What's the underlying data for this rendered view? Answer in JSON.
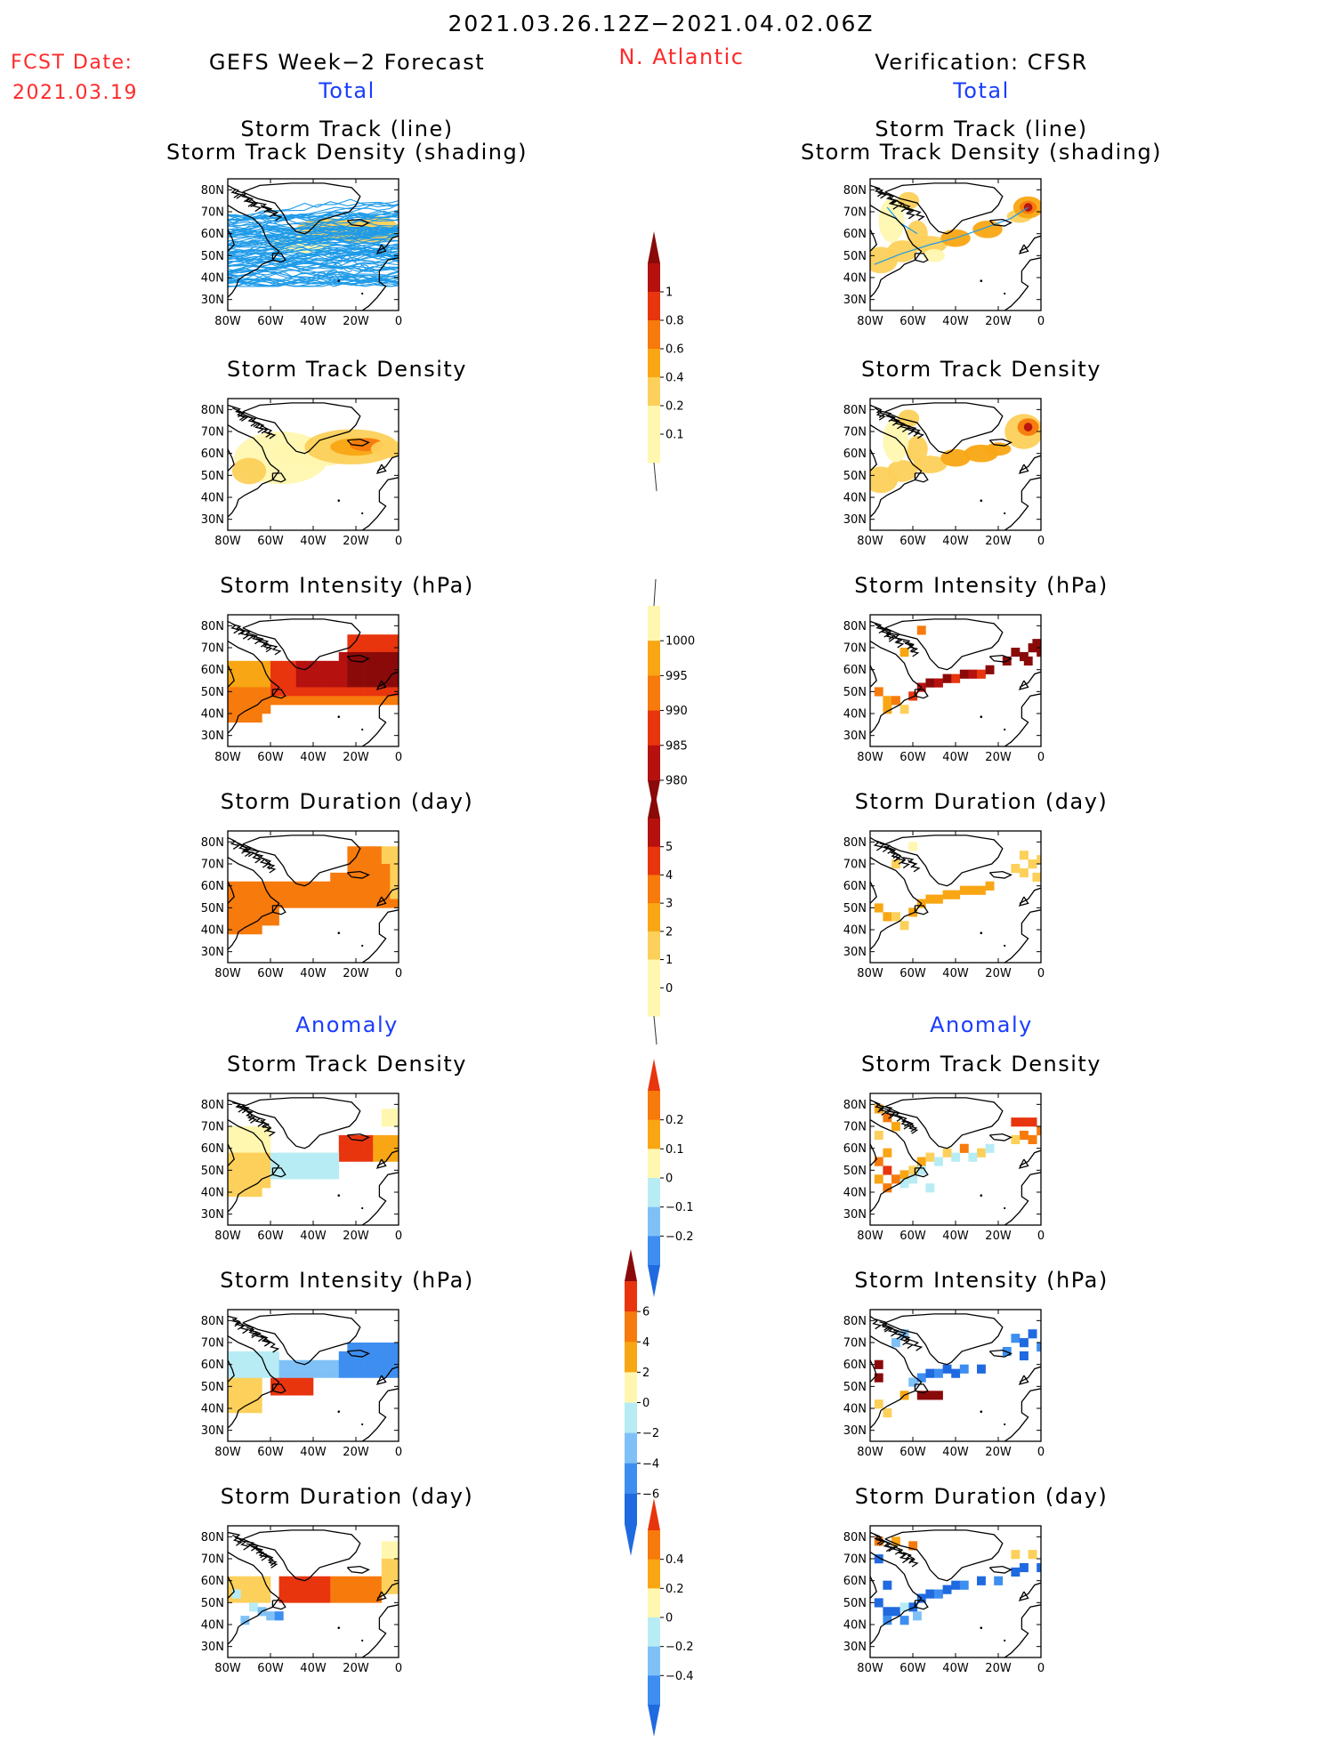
{
  "header": {
    "date_range": "2021.03.26.12Z−2021.04.02.06Z",
    "fcst_label": "FCST Date:",
    "fcst_date": "2021.03.19",
    "left_title": "GEFS Week−2 Forecast",
    "region": "N. Atlantic",
    "right_title": "Verification: CFSR",
    "total": "Total",
    "anomaly": "Anomaly"
  },
  "panels": {
    "track_line": "Storm Track (line)",
    "track_shading": "Storm Track Density (shading)",
    "density": "Storm Track Density",
    "intensity": "Storm Intensity (hPa)",
    "duration": "Storm Duration (day)"
  },
  "axes": {
    "lat": [
      "80N",
      "70N",
      "60N",
      "50N",
      "40N",
      "30N"
    ],
    "lon": [
      "80W",
      "60W",
      "40W",
      "20W",
      "0"
    ]
  },
  "colorbars": {
    "density": [
      "1",
      "0.8",
      "0.6",
      "0.4",
      "0.2",
      "0.1"
    ],
    "intensity": [
      "1000",
      "995",
      "990",
      "985",
      "980"
    ],
    "duration": [
      "5",
      "4",
      "3",
      "2",
      "1",
      "0"
    ],
    "density_anom": [
      "0.2",
      "0.1",
      "0",
      "−0.1",
      "−0.2"
    ],
    "intensity_anom": [
      "6",
      "4",
      "2",
      "0",
      "−2",
      "−4",
      "−6"
    ],
    "duration_anom": [
      "0.4",
      "0.2",
      "0",
      "−0.2",
      "−0.4"
    ]
  },
  "colors": {
    "warm": [
      "#fff7b0",
      "#fcd05a",
      "#f9a614",
      "#f77a0c",
      "#e8350e",
      "#b5110f",
      "#8a0a0a"
    ],
    "cool": [
      "#b8ecf5",
      "#7fc1f7",
      "#3d8ef0",
      "#1f6ae0"
    ],
    "track": "#1f9be8"
  }
}
